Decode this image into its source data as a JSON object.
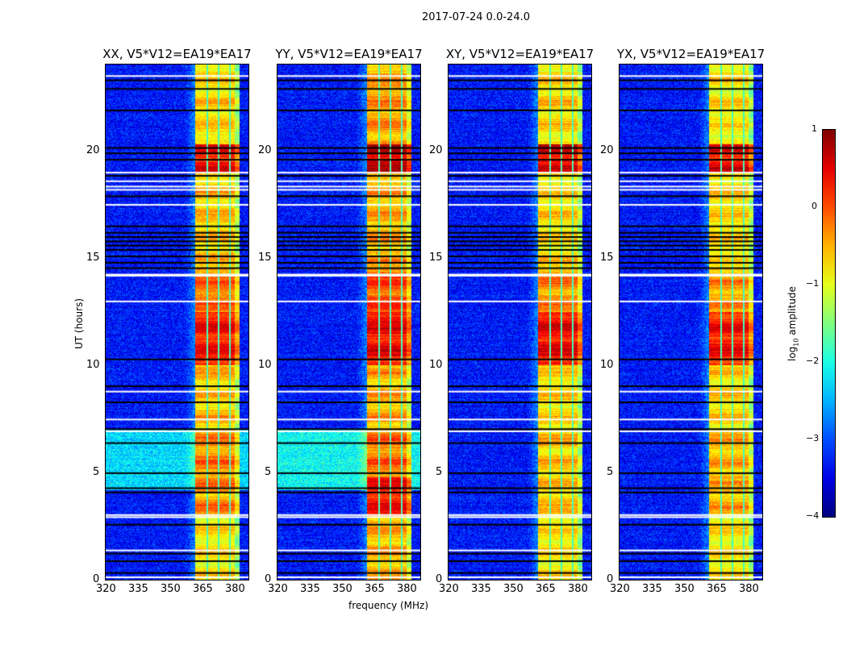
{
  "title": "2017-07-24 0.0-24.0",
  "chart_data": {
    "type": "heatmap",
    "title": "2017-07-24 0.0-24.0",
    "xlabel": "frequency (MHz)",
    "ylabel": "UT (hours)",
    "xlim": [
      320,
      386.4
    ],
    "ylim": [
      0,
      24
    ],
    "xticks": [
      320,
      335,
      350,
      365,
      380
    ],
    "yticks": [
      0,
      5,
      10,
      15,
      20
    ],
    "colorbar": {
      "label_prefix": "log",
      "label_sub": "10",
      "label_suffix": " amplitude",
      "range": [
        -4,
        1
      ],
      "ticks": [
        1,
        0,
        -1,
        -2,
        -3,
        -4
      ],
      "tick_labels": [
        "1",
        "0",
        "−1",
        "−2",
        "−3",
        "−4"
      ],
      "colormap": "jet"
    },
    "signal_band_mhz": [
      361.6,
      382.2
    ],
    "subband_gaps_mhz": [
      367.1,
      372.4,
      377.6
    ],
    "background_log_amp": -3.3,
    "flagged_black_hours": [
      0.35,
      0.9,
      1.25,
      2.6,
      4.1,
      4.3,
      5.0,
      6.4,
      7.05,
      8.3,
      9.05,
      10.3,
      14.55,
      14.8,
      15.1,
      15.4,
      15.6,
      15.8,
      16.0,
      16.2,
      16.5,
      17.9,
      18.85,
      19.6,
      19.9,
      20.15,
      21.9,
      22.9,
      23.3
    ],
    "flagged_white_hours": [
      0.15,
      1.4,
      2.95,
      3.05,
      6.95,
      7.5,
      8.8,
      13.0,
      14.2,
      14.25,
      17.5,
      18.2,
      18.35,
      18.6,
      19.0,
      23.5
    ],
    "panels": [
      {
        "name": "XX",
        "title": "XX, V5*V12=EA19*EA17",
        "band_profile": [
          [
            0,
            3,
            -0.8
          ],
          [
            3,
            7,
            -0.3
          ],
          [
            7,
            10,
            -0.6
          ],
          [
            10,
            12.5,
            0.3
          ],
          [
            12.5,
            14.5,
            -0.2
          ],
          [
            14.5,
            19,
            -0.6
          ],
          [
            19,
            20.3,
            0.4
          ],
          [
            20.3,
            24,
            -0.7
          ]
        ],
        "bg_boost": [
          [
            4.2,
            7.0,
            -2.3
          ]
        ]
      },
      {
        "name": "YY",
        "title": "YY, V5*V12=EA19*EA17",
        "band_profile": [
          [
            0,
            3,
            -0.5
          ],
          [
            3,
            4.8,
            0.3
          ],
          [
            4.8,
            7,
            -0.2
          ],
          [
            7,
            10,
            -0.5
          ],
          [
            10,
            12.5,
            0.4
          ],
          [
            12.5,
            14.5,
            0.0
          ],
          [
            14.5,
            19,
            -0.5
          ],
          [
            19,
            20.3,
            0.6
          ],
          [
            20.3,
            24,
            -0.4
          ]
        ],
        "bg_boost": [
          [
            4.2,
            7.0,
            -2.1
          ]
        ]
      },
      {
        "name": "XY",
        "title": "XY, V5*V12=EA19*EA17",
        "band_profile": [
          [
            0,
            3,
            -0.8
          ],
          [
            3,
            7,
            -0.6
          ],
          [
            7,
            10,
            -0.7
          ],
          [
            10,
            12.5,
            0.4
          ],
          [
            12.5,
            14.5,
            -0.3
          ],
          [
            14.5,
            19,
            -0.7
          ],
          [
            19,
            20.3,
            0.5
          ],
          [
            20.3,
            24,
            -0.7
          ]
        ],
        "bg_boost": []
      },
      {
        "name": "YX",
        "title": "YX, V5*V12=EA19*EA17",
        "band_profile": [
          [
            0,
            3,
            -0.8
          ],
          [
            3,
            7,
            -0.5
          ],
          [
            7,
            10,
            -0.7
          ],
          [
            10,
            12.5,
            0.3
          ],
          [
            12.5,
            14.5,
            -0.4
          ],
          [
            14.5,
            19,
            -0.7
          ],
          [
            19,
            20.3,
            0.4
          ],
          [
            20.3,
            24,
            -0.8
          ]
        ],
        "bg_boost": []
      }
    ]
  }
}
